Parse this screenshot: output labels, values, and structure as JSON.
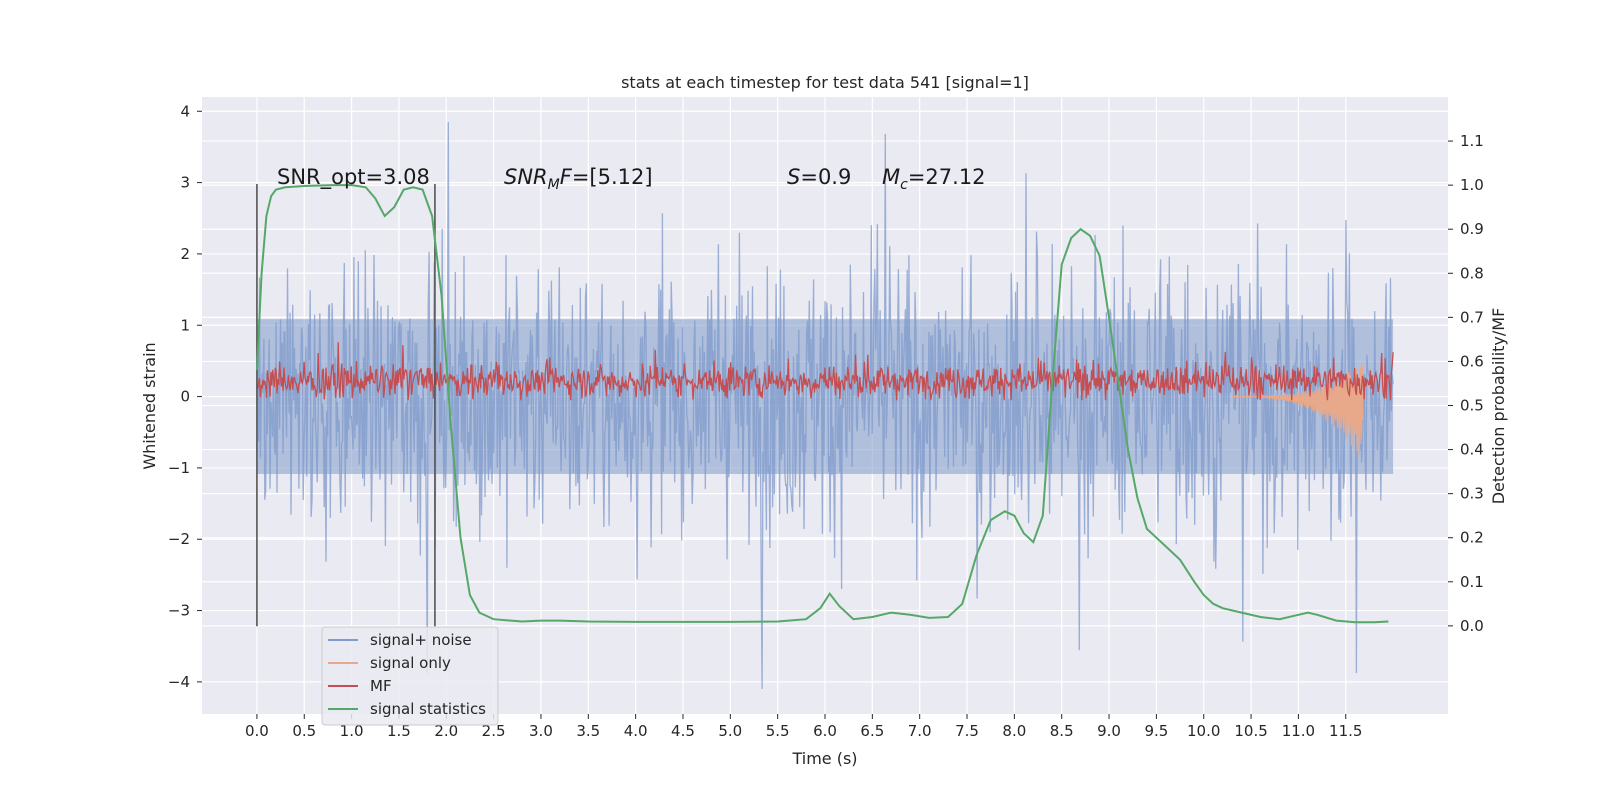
{
  "chart_data": {
    "type": "line",
    "title": "stats at each timestep for test data 541 [signal=1]",
    "xlabel": "Time (s)",
    "ylabel": "Whitened strain",
    "y2label": "Detection probability/MF",
    "xlim": [
      -0.58,
      12.58
    ],
    "ylim": [
      -4.45,
      4.2
    ],
    "y2lim": [
      -0.2,
      1.2
    ],
    "x_ticks": [
      0.0,
      0.5,
      1.0,
      1.5,
      2.0,
      2.5,
      3.0,
      3.5,
      4.0,
      4.5,
      5.0,
      5.5,
      6.0,
      6.5,
      7.0,
      7.5,
      8.0,
      8.5,
      9.0,
      9.5,
      10.0,
      10.5,
      11.0,
      11.5
    ],
    "x_tick_labels": [
      "0.0",
      "0.5",
      "1.0",
      "1.5",
      "2.0",
      "2.5",
      "3.0",
      "3.5",
      "4.0",
      "4.5",
      "5.0",
      "5.5",
      "6.0",
      "6.5",
      "7.0",
      "7.5",
      "8.0",
      "8.5",
      "9.0",
      "9.5",
      "10.0",
      "10.5",
      "11.0",
      "11.5"
    ],
    "y_ticks": [
      -4,
      -3,
      -2,
      -1,
      0,
      1,
      2,
      3,
      4
    ],
    "y_tick_labels": [
      "−4",
      "−3",
      "−2",
      "−1",
      "0",
      "1",
      "2",
      "3",
      "4"
    ],
    "y2_ticks": [
      0.0,
      0.1,
      0.2,
      0.3,
      0.4,
      0.5,
      0.6,
      0.7,
      0.8,
      0.9,
      1.0,
      1.1
    ],
    "y2_tick_labels": [
      "0.0",
      "0.1",
      "0.2",
      "0.3",
      "0.4",
      "0.5",
      "0.6",
      "0.7",
      "0.8",
      "0.9",
      "1.0",
      "1.1"
    ],
    "grid": true,
    "legend_position": "lower-left",
    "series": [
      {
        "name": "signal+ noise",
        "color": "#7f9acb",
        "style": "noise band",
        "x_range": [
          0.0,
          12.0
        ],
        "typical_range": [
          -1.75,
          1.75
        ],
        "extreme_range": [
          -4.1,
          3.85
        ]
      },
      {
        "name": "signal only",
        "color": "#e8a88a",
        "style": "chirp ending",
        "x_range": [
          10.3,
          11.68
        ],
        "peak_amplitude": -0.7
      },
      {
        "name": "MF",
        "color": "#c44e52",
        "style": "noise band",
        "x_range": [
          0.0,
          12.0
        ],
        "typical_range": [
          0.0,
          0.45
        ],
        "extreme_range": [
          -0.05,
          1.0
        ]
      },
      {
        "name": "signal statistics",
        "color": "#55a868",
        "axis": "right",
        "x": [
          0.0,
          0.05,
          0.1,
          0.15,
          0.2,
          0.3,
          0.5,
          0.8,
          1.0,
          1.15,
          1.25,
          1.35,
          1.45,
          1.55,
          1.65,
          1.75,
          1.85,
          1.95,
          2.05,
          2.15,
          2.25,
          2.35,
          2.5,
          2.8,
          3.0,
          3.2,
          3.5,
          4.0,
          4.5,
          5.0,
          5.5,
          5.8,
          5.95,
          6.05,
          6.15,
          6.3,
          6.5,
          6.7,
          6.9,
          7.1,
          7.3,
          7.45,
          7.6,
          7.75,
          7.9,
          8.0,
          8.1,
          8.2,
          8.3,
          8.4,
          8.5,
          8.6,
          8.7,
          8.8,
          8.9,
          9.0,
          9.1,
          9.2,
          9.3,
          9.4,
          9.5,
          9.6,
          9.75,
          9.9,
          10.0,
          10.1,
          10.2,
          10.4,
          10.6,
          10.8,
          11.0,
          11.1,
          11.2,
          11.4,
          11.6,
          11.8,
          11.95
        ],
        "y": [
          0.58,
          0.8,
          0.93,
          0.975,
          0.99,
          0.995,
          0.998,
          1.0,
          1.0,
          0.995,
          0.97,
          0.93,
          0.95,
          0.99,
          0.995,
          0.99,
          0.93,
          0.75,
          0.45,
          0.2,
          0.07,
          0.03,
          0.015,
          0.01,
          0.012,
          0.012,
          0.01,
          0.009,
          0.009,
          0.009,
          0.01,
          0.015,
          0.04,
          0.073,
          0.045,
          0.015,
          0.02,
          0.03,
          0.025,
          0.018,
          0.02,
          0.05,
          0.16,
          0.24,
          0.26,
          0.25,
          0.21,
          0.19,
          0.25,
          0.55,
          0.82,
          0.88,
          0.9,
          0.885,
          0.84,
          0.7,
          0.55,
          0.4,
          0.29,
          0.22,
          0.2,
          0.18,
          0.15,
          0.1,
          0.07,
          0.05,
          0.04,
          0.03,
          0.02,
          0.015,
          0.025,
          0.03,
          0.025,
          0.012,
          0.008,
          0.008,
          0.01
        ]
      }
    ],
    "vertical_markers": [
      {
        "x": 0.0,
        "y_range": [
          -3.22,
          2.98
        ]
      },
      {
        "x": 1.88,
        "y_range": [
          -3.22,
          2.98
        ]
      }
    ],
    "annotations": [
      {
        "id": "snr_opt",
        "text": "SNR_opt=3.08",
        "x": 0.2,
        "y": 3.0
      },
      {
        "id": "snr_mf",
        "prefix": "SNR",
        "sub": "M",
        "mid": "F",
        "value": "=[5.12]",
        "x": 2.6,
        "y": 3.0
      },
      {
        "id": "s",
        "prefix": "S",
        "value": "=0.9",
        "x": 5.6,
        "y": 3.0
      },
      {
        "id": "mc",
        "prefix": "M",
        "sub": "c",
        "value": "=27.12",
        "x": 6.6,
        "y": 3.0
      }
    ]
  }
}
